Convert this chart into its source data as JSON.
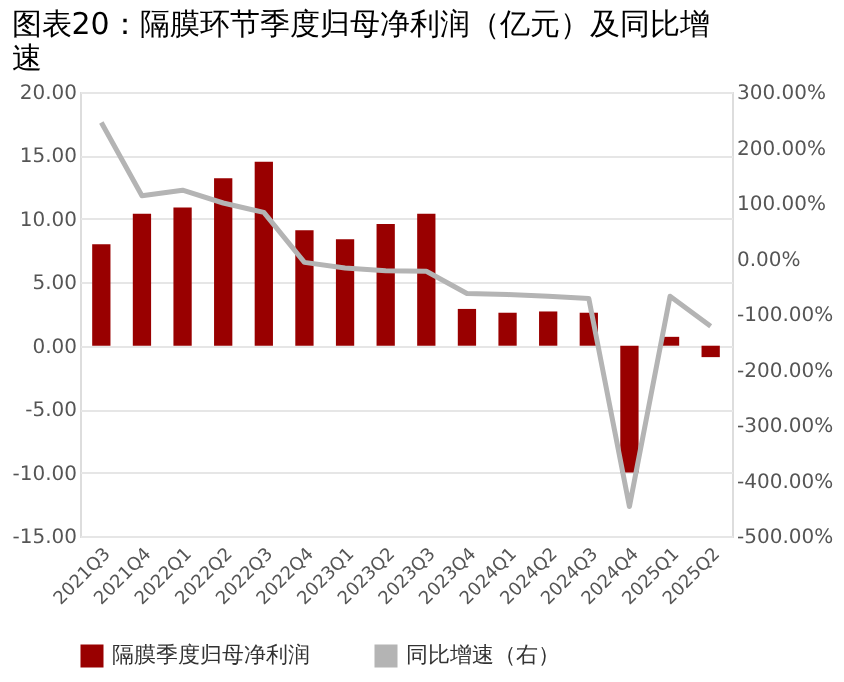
{
  "chart_data": {
    "type": "bar",
    "title": "图表20：隔膜环节季度归母净利润（亿元）及同比增速",
    "categories": [
      "2021Q3",
      "2021Q4",
      "2022Q1",
      "2022Q2",
      "2022Q3",
      "2022Q4",
      "2023Q1",
      "2023Q2",
      "2023Q3",
      "2023Q4",
      "2024Q1",
      "2024Q2",
      "2024Q3",
      "2024Q4",
      "2025Q1",
      "2025Q2"
    ],
    "series": [
      {
        "name": "隔膜季度归母净利润",
        "color": "#990000",
        "values": [
          8.0,
          10.4,
          10.9,
          13.2,
          14.5,
          9.1,
          8.4,
          9.6,
          10.4,
          2.9,
          2.6,
          2.7,
          2.6,
          -10.0,
          0.7,
          -0.9
        ]
      },
      {
        "name": "同比增速（右）",
        "color": "#b4b4b4",
        "type": "line",
        "axis": "y2",
        "values": [
          245,
          113,
          123,
          100,
          83,
          -7,
          -17,
          -22,
          -23,
          -63,
          -65,
          -68,
          -72,
          -447,
          -68,
          -122
        ]
      }
    ],
    "ylim": [
      -15,
      20
    ],
    "yticks": [
      {
        "value": -15,
        "label": "-15.00"
      },
      {
        "value": -10,
        "label": "-10.00"
      },
      {
        "value": -5,
        "label": "-5.00"
      },
      {
        "value": 0,
        "label": "0.00"
      },
      {
        "value": 5,
        "label": "5.00"
      },
      {
        "value": 10,
        "label": "10.00"
      },
      {
        "value": 15,
        "label": "15.00"
      },
      {
        "value": 20,
        "label": "20.00"
      }
    ],
    "y2lim": [
      -500,
      300
    ],
    "y2ticks": [
      {
        "value": -500,
        "label": "-500.00%"
      },
      {
        "value": -400,
        "label": "-400.00%"
      },
      {
        "value": -300,
        "label": "-300.00%"
      },
      {
        "value": -200,
        "label": "-200.00%"
      },
      {
        "value": -100,
        "label": "-100.00%"
      },
      {
        "value": 0,
        "label": "0.00%"
      },
      {
        "value": 100,
        "label": "100.00%"
      },
      {
        "value": 200,
        "label": "200.00%"
      },
      {
        "value": 300,
        "label": "300.00%"
      }
    ],
    "grid": "y",
    "legend": "bottom",
    "marker": "none",
    "line_style": "solid"
  }
}
